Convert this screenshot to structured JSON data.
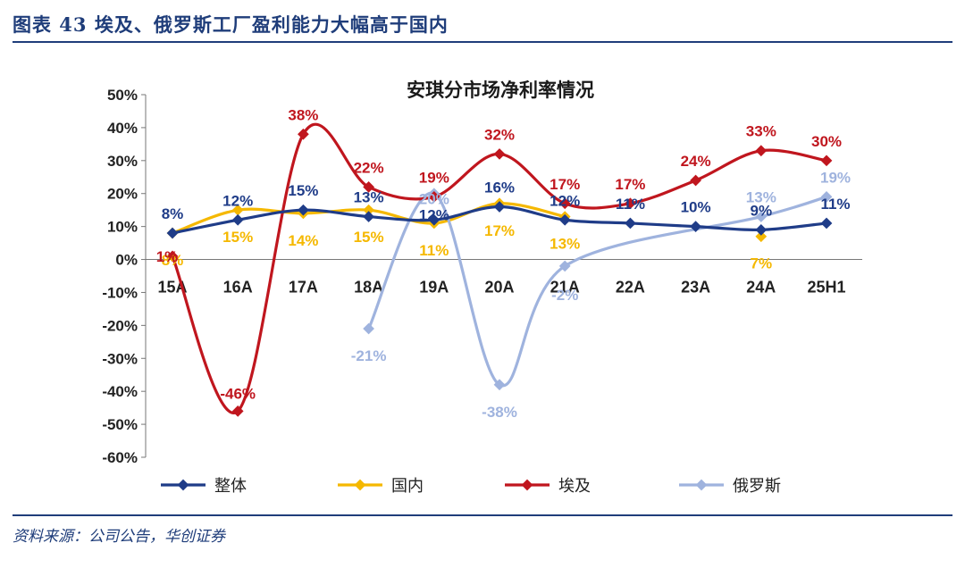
{
  "header": {
    "title": "图表 43 埃及、俄罗斯工厂盈利能力大幅高于国内"
  },
  "footer": {
    "source": "资料来源：公司公告，华创证券"
  },
  "chart_data": {
    "type": "line",
    "title": "安琪分市场净利率情况",
    "categories": [
      "15A",
      "16A",
      "17A",
      "18A",
      "19A",
      "20A",
      "21A",
      "22A",
      "23A",
      "24A",
      "25H1"
    ],
    "ylim": [
      -60,
      50
    ],
    "yticks": [
      50,
      40,
      30,
      20,
      10,
      0,
      -10,
      -20,
      -30,
      -40,
      -50,
      -60
    ],
    "ytick_labels": [
      "50%",
      "40%",
      "30%",
      "20%",
      "10%",
      "0%",
      "-10%",
      "-20%",
      "-30%",
      "-40%",
      "-50%",
      "-60%"
    ],
    "legend_position": "bottom",
    "series": [
      {
        "name": "整体",
        "color": "#1f3c88",
        "values": [
          8,
          12,
          15,
          13,
          12,
          16,
          12,
          11,
          10,
          9,
          11
        ],
        "labels": [
          "8%",
          "12%",
          "15%",
          "13%",
          "12%",
          "16%",
          "12%",
          "11%",
          "10%",
          "9%",
          "11%"
        ]
      },
      {
        "name": "国内",
        "color": "#f5b800",
        "values": [
          8,
          15,
          14,
          15,
          11,
          17,
          13,
          null,
          null,
          7,
          null
        ],
        "labels": [
          "8%",
          "15%",
          "14%",
          "15%",
          "11%",
          "17%",
          "13%",
          null,
          null,
          "7%",
          null
        ]
      },
      {
        "name": "埃及",
        "color": "#c0161e",
        "values": [
          1,
          -46,
          38,
          22,
          19,
          32,
          17,
          17,
          24,
          33,
          30
        ],
        "labels": [
          "1%",
          "-46%",
          "38%",
          "22%",
          "19%",
          "32%",
          "17%",
          "17%",
          "24%",
          "33%",
          "30%"
        ]
      },
      {
        "name": "俄罗斯",
        "color": "#9fb3de",
        "values": [
          null,
          null,
          null,
          -21,
          20,
          -38,
          -2,
          null,
          null,
          13,
          19
        ],
        "labels": [
          null,
          null,
          null,
          "-21%",
          "20%",
          "-38%",
          "-2%",
          null,
          null,
          "13%",
          "19%"
        ]
      }
    ]
  }
}
